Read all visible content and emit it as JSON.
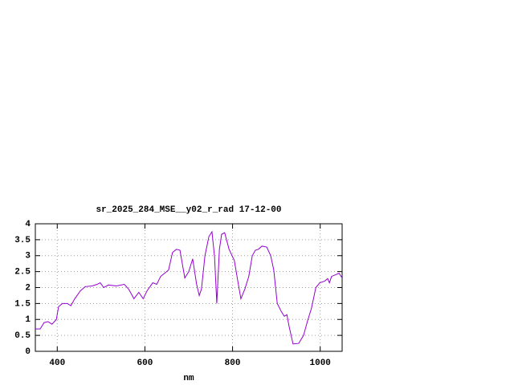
{
  "chart_data": {
    "type": "line",
    "title": "sr_2025_284_MSE__y02_r_rad 17-12-00",
    "x_label": "nm",
    "x": [
      350,
      361,
      370,
      379,
      388,
      398,
      403,
      412,
      423,
      431,
      440,
      453,
      464,
      480,
      491,
      498,
      506,
      517,
      535,
      553,
      563,
      575,
      586,
      596,
      605,
      618,
      627,
      636,
      645,
      654,
      663,
      672,
      680,
      691,
      700,
      709,
      718,
      724,
      729,
      737,
      746,
      753,
      759,
      764,
      770,
      775,
      782,
      792,
      804,
      812,
      819,
      828,
      837,
      845,
      852,
      859,
      867,
      878,
      887,
      894,
      902,
      911,
      918,
      924,
      929,
      938,
      951,
      962,
      971,
      980,
      990,
      999,
      1010,
      1017,
      1021,
      1026,
      1035,
      1043,
      1050
    ],
    "series": [
      {
        "name": "sr_2025_284_MSE__y02_r_rad",
        "color": "#9400d3",
        "values": [
          0.7,
          0.7,
          0.9,
          0.93,
          0.85,
          1.0,
          1.4,
          1.5,
          1.5,
          1.43,
          1.65,
          1.9,
          2.03,
          2.05,
          2.1,
          2.15,
          2.0,
          2.08,
          2.05,
          2.1,
          1.95,
          1.65,
          1.85,
          1.65,
          1.9,
          2.15,
          2.1,
          2.35,
          2.45,
          2.55,
          3.1,
          3.2,
          3.17,
          2.3,
          2.5,
          2.9,
          2.1,
          1.75,
          1.95,
          3.0,
          3.6,
          3.75,
          2.95,
          1.5,
          3.2,
          3.67,
          3.72,
          3.2,
          2.85,
          2.2,
          1.65,
          1.95,
          2.35,
          3.0,
          3.17,
          3.2,
          3.3,
          3.27,
          3.0,
          2.55,
          1.5,
          1.25,
          1.1,
          1.15,
          0.78,
          0.23,
          0.25,
          0.5,
          0.95,
          1.35,
          2.0,
          2.15,
          2.2,
          2.28,
          2.15,
          2.35,
          2.4,
          2.45,
          2.3
        ]
      }
    ],
    "xlim": [
      350,
      1050
    ],
    "xticks": [
      400,
      600,
      800,
      1000
    ],
    "ylim": [
      0,
      4
    ],
    "yticks": [
      0,
      0.5,
      1,
      1.5,
      2,
      2.5,
      3,
      3.5,
      4
    ],
    "grid": true
  }
}
